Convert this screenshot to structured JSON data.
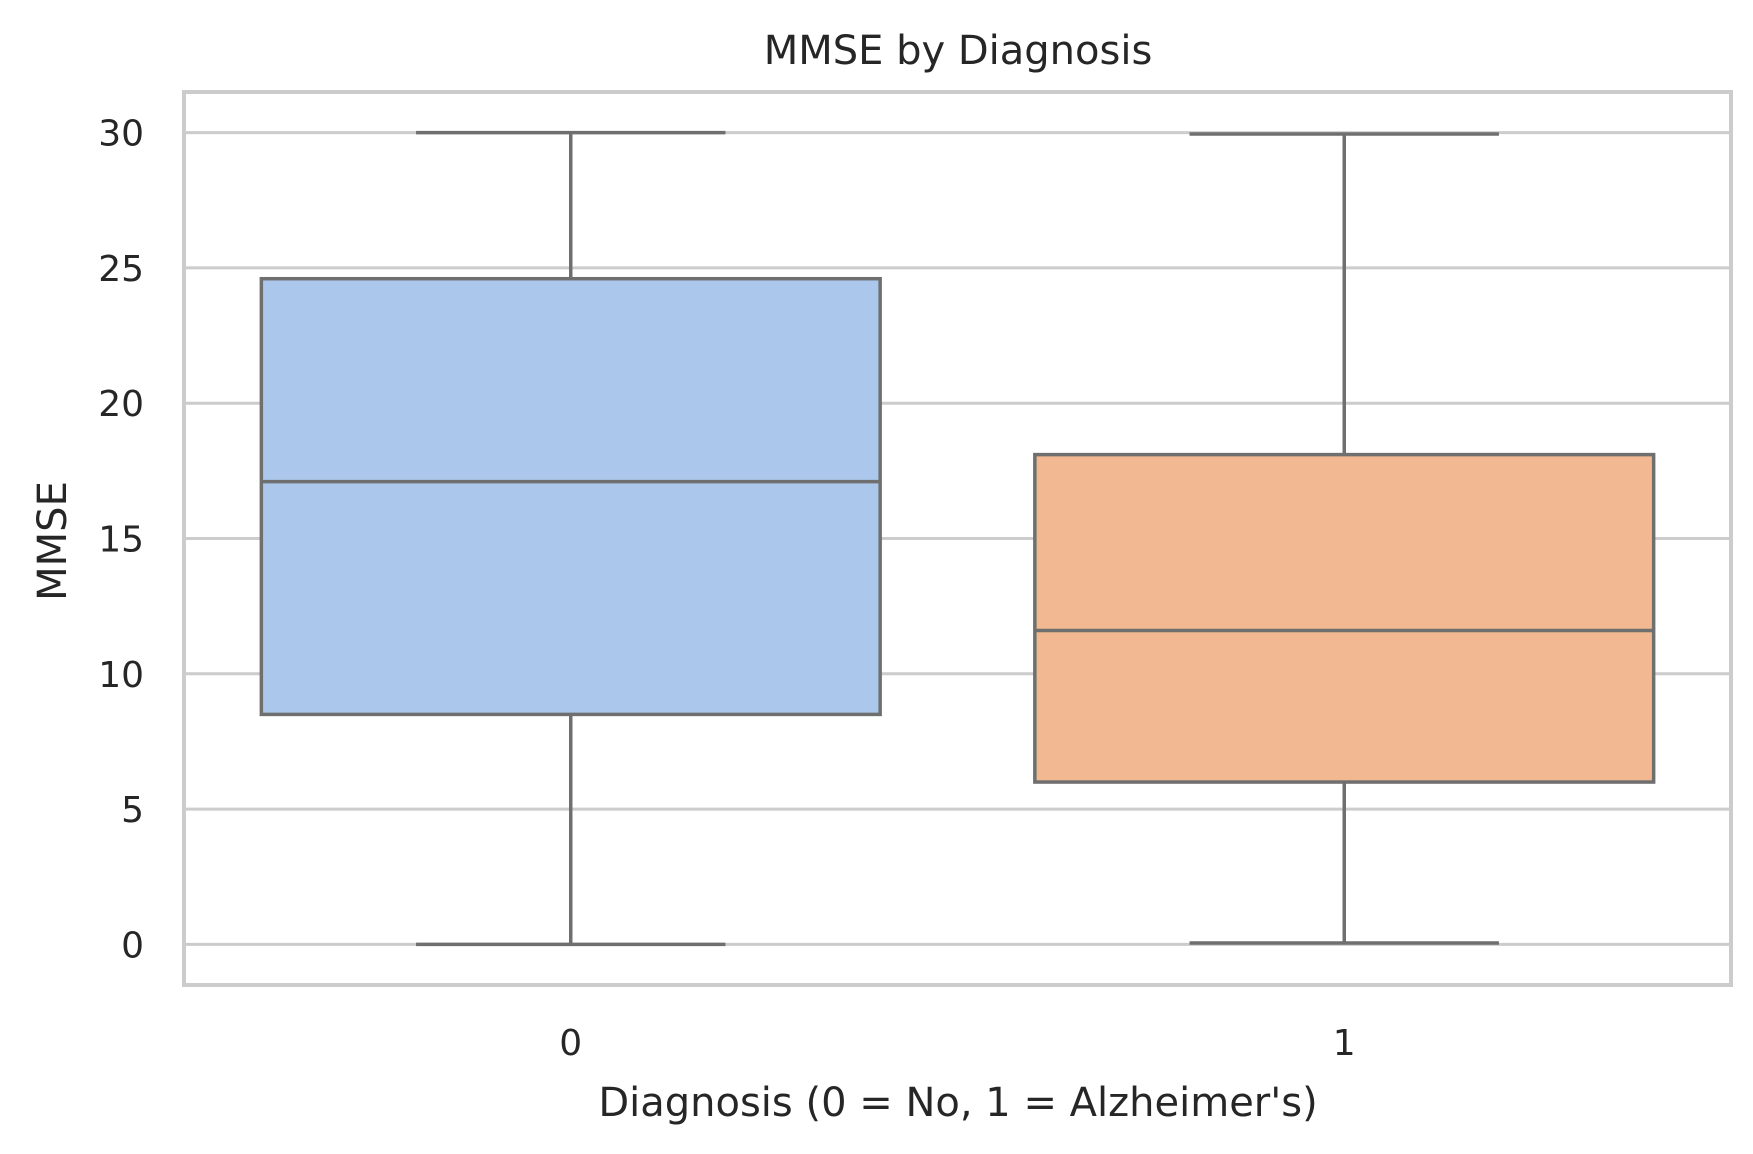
{
  "chart_data": {
    "type": "box",
    "title": "MMSE by Diagnosis",
    "xlabel": "Diagnosis (0 = No, 1 = Alzheimer's)",
    "ylabel": "MMSE",
    "categories": [
      "0",
      "1"
    ],
    "ylim": [
      -1.5,
      31.5
    ],
    "yticks": [
      0,
      5,
      10,
      15,
      20,
      25,
      30
    ],
    "grid": true,
    "boxes": [
      {
        "category": "0",
        "min": 0,
        "q1": 8.5,
        "median": 17.1,
        "q3": 24.6,
        "max": 30,
        "color": "#abc8ec"
      },
      {
        "category": "1",
        "min": 0.05,
        "q1": 6.0,
        "median": 11.6,
        "q3": 18.1,
        "max": 29.95,
        "color": "#f1b892"
      }
    ]
  }
}
